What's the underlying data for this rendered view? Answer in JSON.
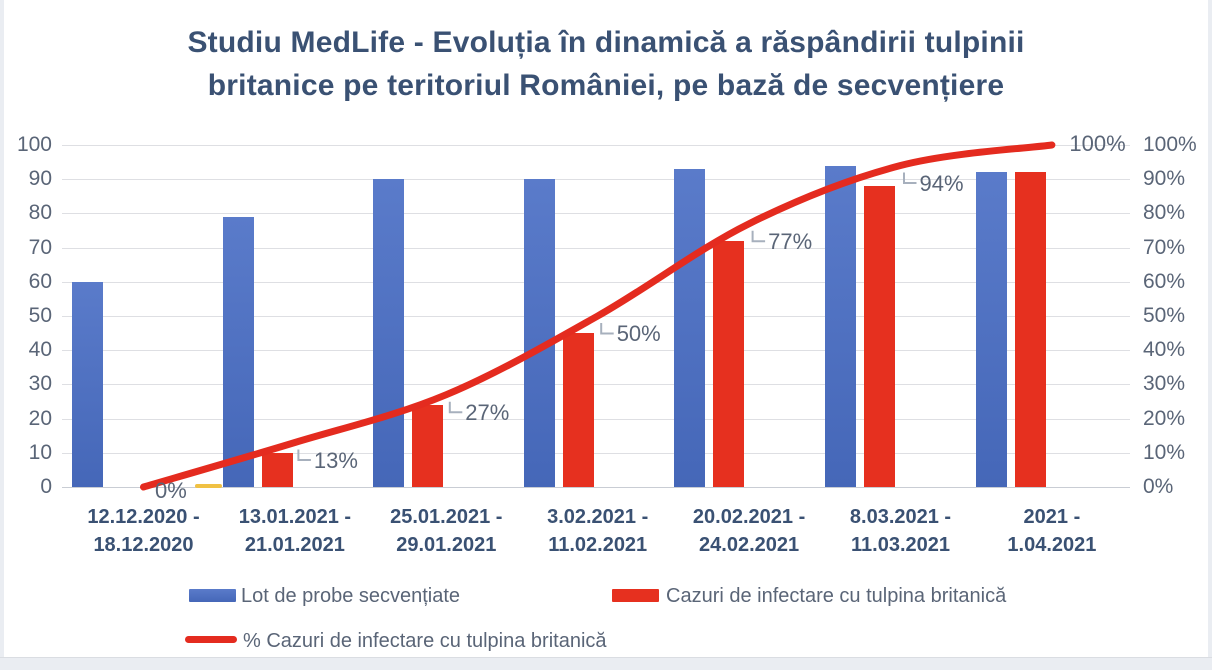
{
  "title": {
    "full": "Studiu MedLife - Evoluția în dinamică a răspândirii tulpinii britanice pe teritoriul României, pe bază de secvențiere",
    "lines": [
      "Studiu MedLife - Evoluția în dinamică a răspândirii tulpinii",
      "britanice pe teritoriul României, pe bază de secvențiere"
    ]
  },
  "chart_data": {
    "type": "bar",
    "subtype": "clustered-columns-with-line-overlay",
    "title": "Studiu MedLife - Evoluția în dinamică a răspândirii tulpinii britanice pe teritoriul României, pe bază de secvențiere",
    "categories": [
      "12.12.2020 - 18.12.2020",
      "13.01.2021 - 21.01.2021",
      "25.01.2021 - 29.01.2021",
      "3.02.2021 - 11.02.2021",
      "20.02.2021 - 24.02.2021",
      "8.03.2021 - 11.03.2021",
      "2021 - 1.04.2021"
    ],
    "categories_display": [
      [
        "12.12.2020 -",
        "18.12.2020"
      ],
      [
        "13.01.2021 -",
        "21.01.2021"
      ],
      [
        "25.01.2021 -",
        "29.01.2021"
      ],
      [
        "3.02.2021 -",
        "11.02.2021"
      ],
      [
        "20.02.2021 -",
        "24.02.2021"
      ],
      [
        "8.03.2021 -",
        "11.03.2021"
      ],
      [
        "2021 -",
        "1.04.2021"
      ]
    ],
    "series": [
      {
        "name": "Lot de probe secvențiate",
        "type": "bar",
        "color": "#4a70c4",
        "values": [
          60,
          79,
          90,
          90,
          93,
          94,
          92
        ]
      },
      {
        "name": "Cazuri de infectare cu tulpina britanică",
        "type": "bar",
        "color": "#e6301f",
        "values": [
          0,
          10,
          24,
          45,
          72,
          88,
          92
        ]
      },
      {
        "name": "% Cazuri de infectare cu tulpina britanică",
        "type": "line",
        "axis": "right",
        "color": "#e42b1f",
        "values": [
          0,
          13,
          27,
          50,
          77,
          94,
          100
        ],
        "labels": [
          "0%",
          "13%",
          "27%",
          "50%",
          "77%",
          "94%",
          "100%"
        ]
      }
    ],
    "y_left": {
      "min": 0,
      "max": 100,
      "step": 10,
      "ticks": [
        "100",
        "90",
        "80",
        "70",
        "60",
        "50",
        "40",
        "30",
        "20",
        "10",
        "0"
      ]
    },
    "y_right": {
      "min": 0,
      "max": 100,
      "step": 10,
      "ticks": [
        "100%",
        "90%",
        "80%",
        "70%",
        "60%",
        "50%",
        "40%",
        "30%",
        "20%",
        "10%",
        "0%"
      ]
    },
    "grid": "horizontal",
    "legend_position": "bottom",
    "zero_marker_color": "#f0c143",
    "connector_color": "#a7b0bd",
    "label_color": "#5a6577"
  },
  "legend": {
    "items": [
      {
        "label": "Lot de probe secvențiate",
        "swatch": "bar",
        "color": "#4a70c4"
      },
      {
        "label": "Cazuri de infectare cu tulpina britanică",
        "swatch": "bar",
        "color": "#e6301f"
      },
      {
        "label": "% Cazuri de infectare cu tulpina britanică",
        "swatch": "line",
        "color": "#e42b1f"
      }
    ]
  }
}
